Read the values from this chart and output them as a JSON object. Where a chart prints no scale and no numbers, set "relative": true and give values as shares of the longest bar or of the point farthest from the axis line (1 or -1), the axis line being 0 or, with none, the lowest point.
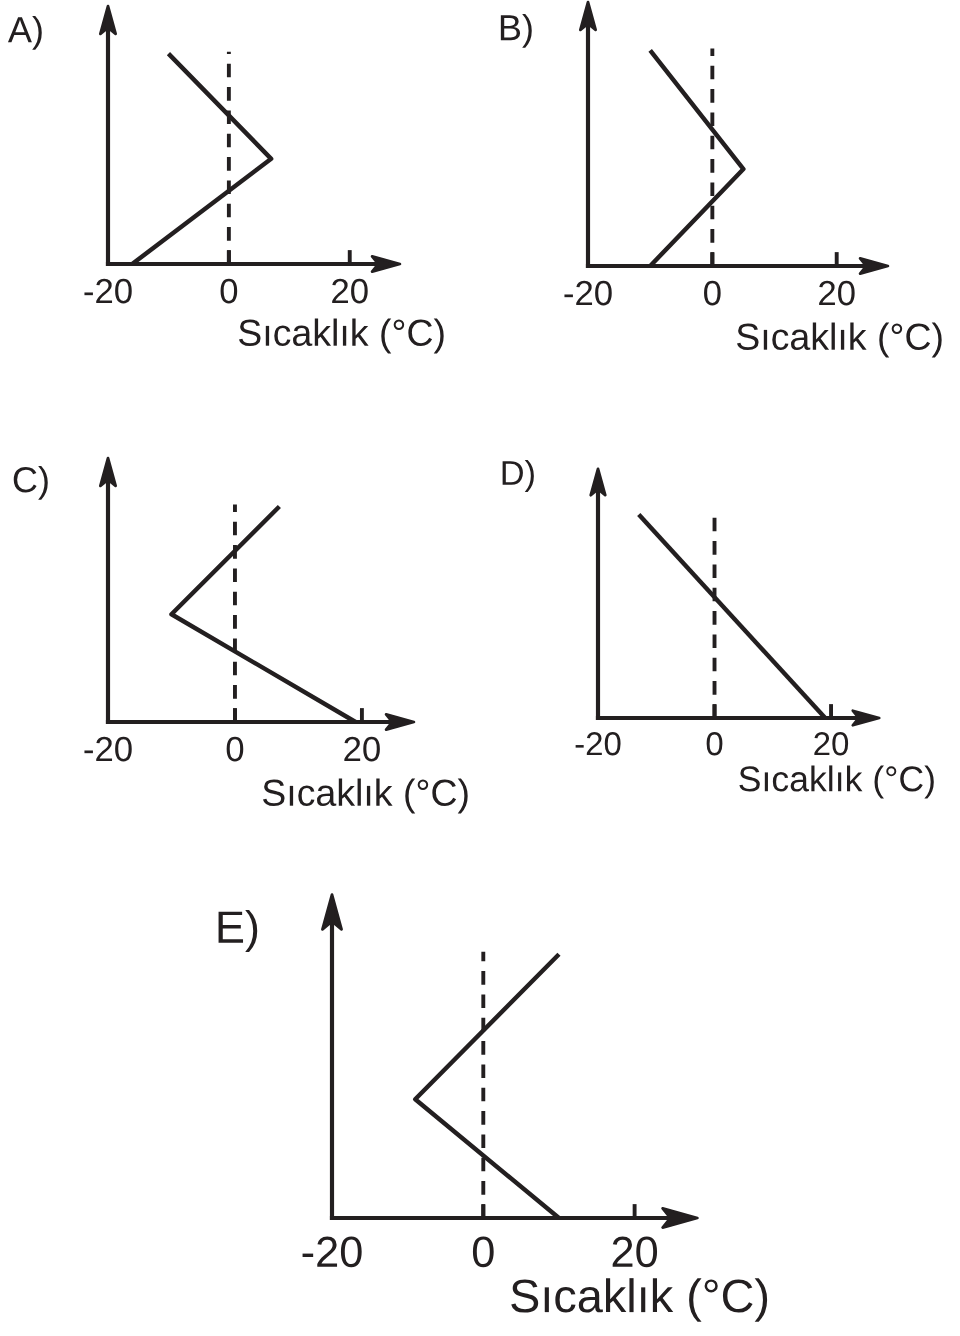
{
  "chart_data": [
    {
      "type": "line",
      "title": "A)",
      "xlabel": "Sıcaklık (°C)",
      "x": [
        -16,
        7,
        -10
      ],
      "values": [
        0,
        0.5,
        1
      ],
      "relative": true,
      "color": "#231f20",
      "xlim": [
        -20,
        26
      ],
      "xticks": [
        -20,
        0,
        20
      ],
      "ref_lines": [
        {
          "axis": "x",
          "value": 0,
          "color": "#231f20",
          "line_style": "dashed"
        }
      ]
    },
    {
      "type": "line",
      "title": "B)",
      "xlabel": "Sıcaklık (°C)",
      "x": [
        -10,
        5,
        -10
      ],
      "values": [
        0,
        0.45,
        1
      ],
      "relative": true,
      "color": "#231f20",
      "xlim": [
        -20,
        26
      ],
      "xticks": [
        -20,
        0,
        20
      ],
      "ref_lines": [
        {
          "axis": "x",
          "value": 0,
          "color": "#231f20",
          "line_style": "dashed"
        }
      ]
    },
    {
      "type": "line",
      "title": "C)",
      "xlabel": "Sıcaklık (°C)",
      "x": [
        19,
        -10,
        7
      ],
      "values": [
        0,
        0.5,
        1
      ],
      "relative": true,
      "color": "#231f20",
      "xlim": [
        -20,
        26
      ],
      "xticks": [
        -20,
        0,
        20
      ],
      "ref_lines": [
        {
          "axis": "x",
          "value": 0,
          "color": "#231f20",
          "line_style": "dashed"
        }
      ]
    },
    {
      "type": "line",
      "title": "D)",
      "xlabel": "Sıcaklık (°C)",
      "x": [
        19,
        -13
      ],
      "values": [
        0,
        1
      ],
      "relative": true,
      "color": "#231f20",
      "xlim": [
        -20,
        26
      ],
      "xticks": [
        -20,
        0,
        20
      ],
      "ref_lines": [
        {
          "axis": "x",
          "value": 0,
          "color": "#231f20",
          "line_style": "dashed"
        }
      ]
    },
    {
      "type": "line",
      "title": "E)",
      "xlabel": "Sıcaklık (°C)",
      "x": [
        10,
        -9,
        10
      ],
      "values": [
        0,
        0.45,
        1
      ],
      "relative": true,
      "color": "#231f20",
      "xlim": [
        -20,
        26
      ],
      "xticks": [
        -20,
        0,
        20
      ],
      "ref_lines": [
        {
          "axis": "x",
          "value": 0,
          "color": "#231f20",
          "line_style": "dashed"
        }
      ]
    }
  ]
}
